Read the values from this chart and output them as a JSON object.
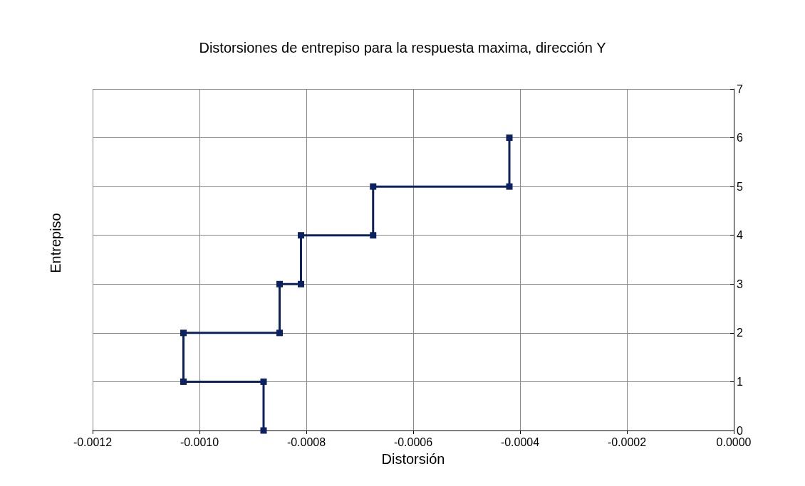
{
  "chart_data": {
    "type": "line",
    "title": "Distorsiones de entrepiso para la respuesta maxima, dirección Y",
    "xlabel": "Distorsión",
    "ylabel": "Entrepiso",
    "series": [
      {
        "color": "#0b2160",
        "x": [
          -0.00088,
          -0.00088,
          -0.00103,
          -0.00103,
          -0.00085,
          -0.00085,
          -0.00081,
          -0.00081,
          -0.000675,
          -0.000675,
          -0.00042,
          -0.00042
        ],
        "values": [
          0,
          1,
          1,
          2,
          2,
          3,
          3,
          4,
          4,
          5,
          5,
          6
        ]
      }
    ],
    "xlim": [
      -0.0012,
      0
    ],
    "xticks": [
      {
        "value": -0.0012,
        "label": "-0.0012"
      },
      {
        "value": -0.001,
        "label": "-0.0010"
      },
      {
        "value": -0.0008,
        "label": "-0.0008"
      },
      {
        "value": -0.0006,
        "label": "-0.0006"
      },
      {
        "value": -0.0004,
        "label": "-0.0004"
      },
      {
        "value": -0.0002,
        "label": "-0.0002"
      },
      {
        "value": 0,
        "label": "0.0000"
      }
    ],
    "ylim": [
      0,
      7
    ],
    "yticks": [
      0,
      1,
      2,
      3,
      4,
      5,
      6,
      7
    ],
    "grid": true,
    "marker": "square",
    "line_style": "solid"
  }
}
